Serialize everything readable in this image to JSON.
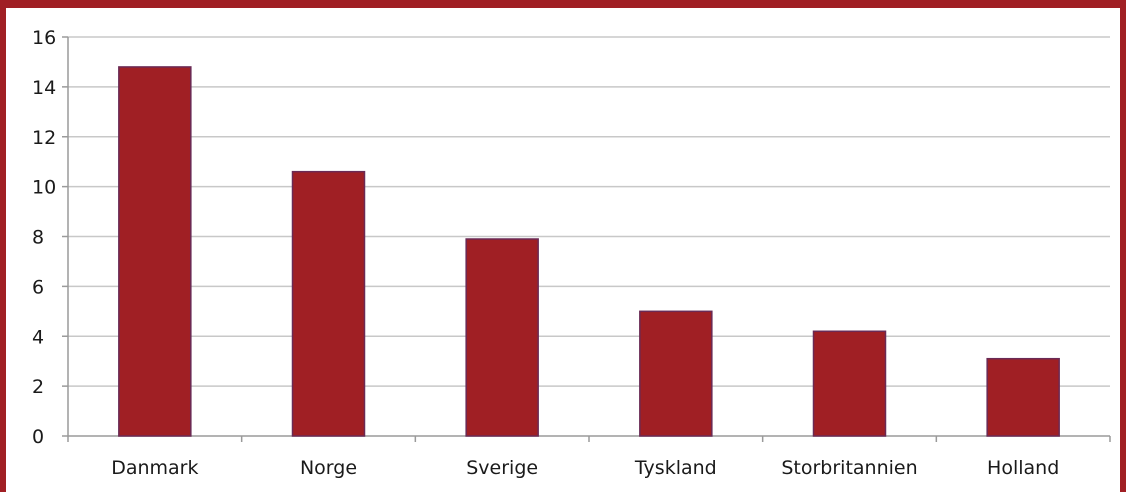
{
  "colors": {
    "frame": "#a01f24",
    "bar_fill": "#a01f24",
    "bar_stroke": "#6a2a55",
    "grid": "#c8c8c8"
  },
  "chart_data": {
    "type": "bar",
    "categories": [
      "Danmark",
      "Norge",
      "Sverige",
      "Tyskland",
      "Storbritannien",
      "Holland"
    ],
    "values": [
      14.8,
      10.6,
      7.9,
      5.0,
      4.2,
      3.1
    ],
    "title": "",
    "xlabel": "",
    "ylabel": "",
    "ylim": [
      0,
      16
    ],
    "yticks": [
      0,
      2,
      4,
      6,
      8,
      10,
      12,
      14,
      16
    ],
    "grid": true,
    "legend": "none"
  }
}
